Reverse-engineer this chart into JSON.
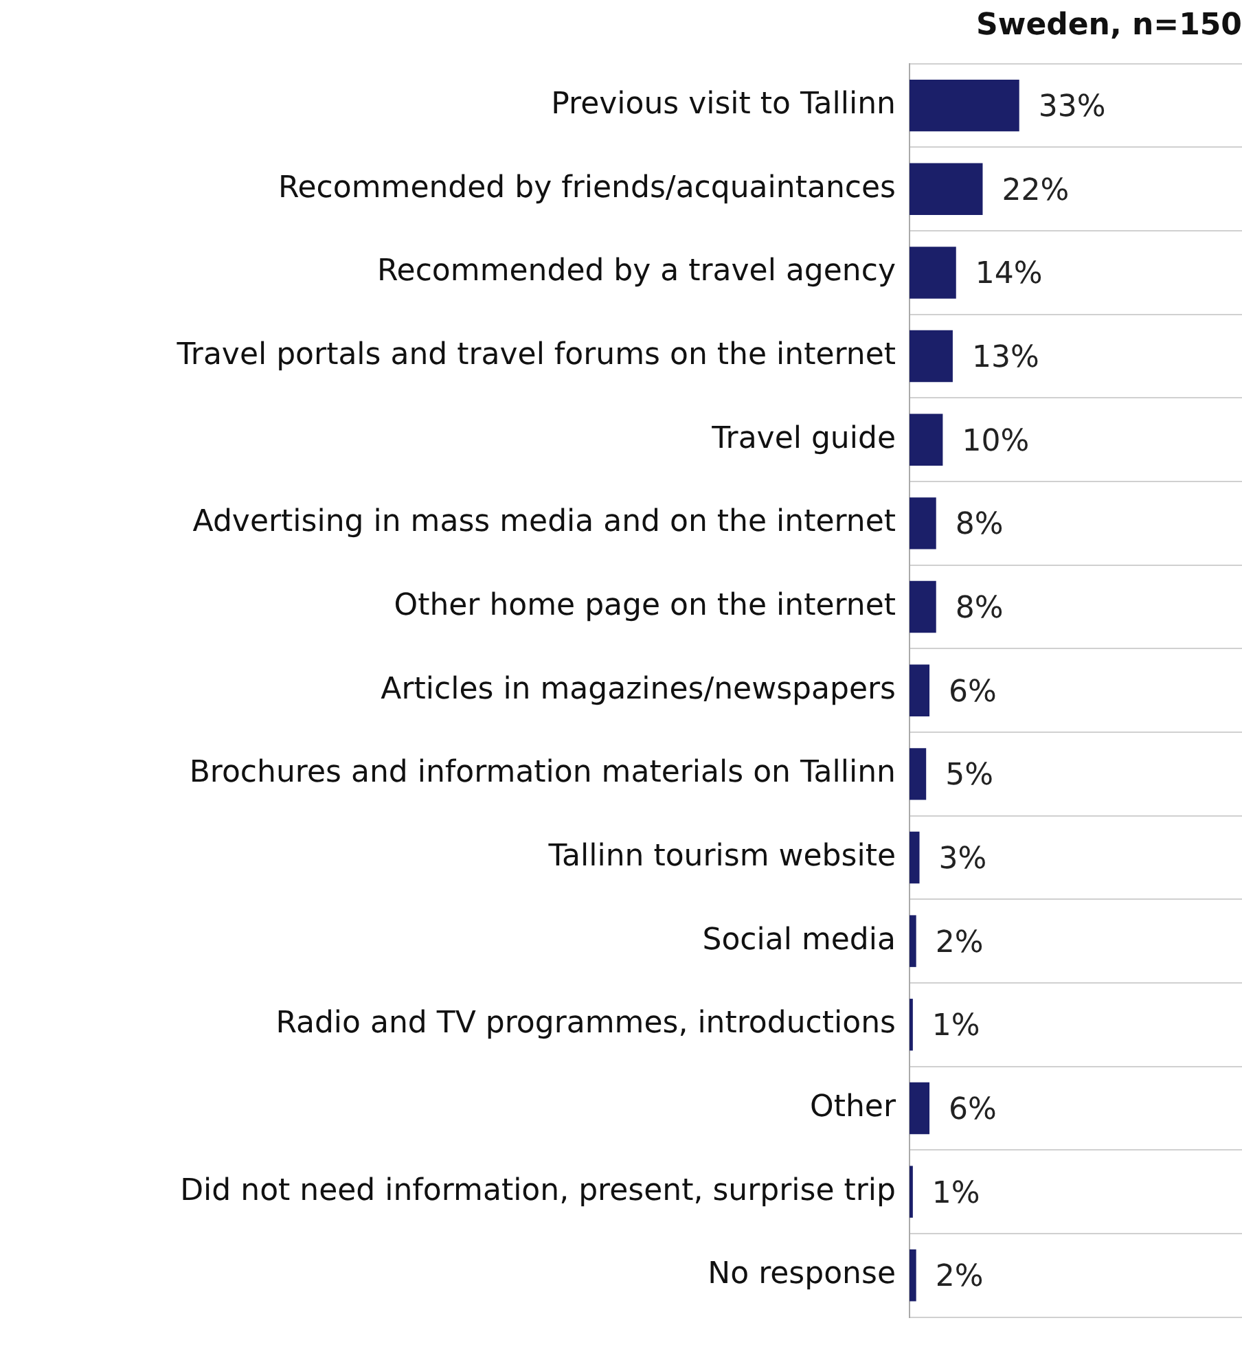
{
  "chart_data": {
    "type": "bar",
    "orientation": "horizontal",
    "title": "Sweden, n=150",
    "categories": [
      "Previous visit to Tallinn",
      "Recommended by friends/acquaintances",
      "Recommended by a travel agency",
      "Travel portals and travel forums on the internet",
      "Travel guide",
      "Advertising in mass media and on the internet",
      "Other home page on the internet",
      "Articles in magazines/newspapers",
      "Brochures and information materials on Tallinn",
      "Tallinn tourism website",
      "Social media",
      "Radio and TV programmes, introductions",
      "Other",
      "Did not need information, present, surprise trip",
      "No response"
    ],
    "values": [
      33,
      22,
      14,
      13,
      10,
      8,
      8,
      6,
      5,
      3,
      2,
      1,
      6,
      1,
      2
    ],
    "value_labels": [
      "33%",
      "22%",
      "14%",
      "13%",
      "10%",
      "8%",
      "8%",
      "6%",
      "5%",
      "3%",
      "2%",
      "1%",
      "6%",
      "1%",
      "2%"
    ],
    "color": "#1b1f69",
    "xlim": [
      0,
      100
    ],
    "tick_labels": "y",
    "grid": "y",
    "legend": false
  }
}
